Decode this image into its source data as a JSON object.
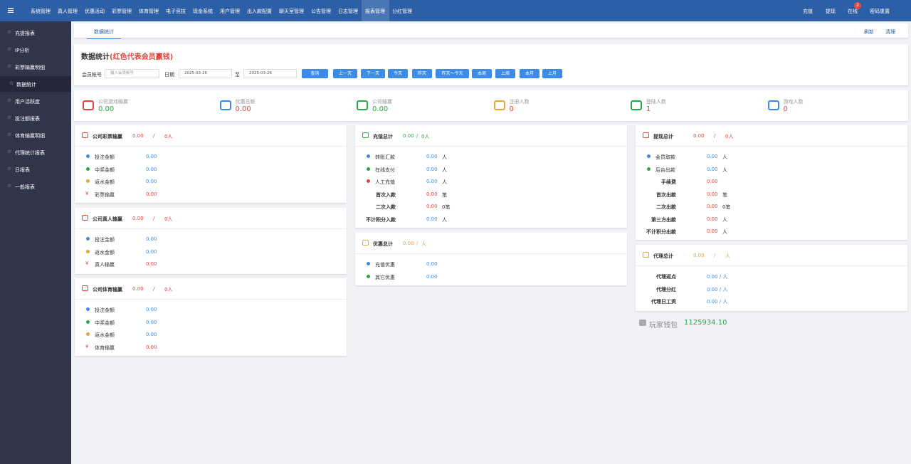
{
  "nav": {
    "items": [
      "系统管理",
      "真人管理",
      "优惠活动",
      "彩票管理",
      "体育管理",
      "电子竞技",
      "现金系统",
      "用户管理",
      "出入款配置",
      "聊天室管理",
      "公告管理",
      "日志管理",
      "报表管理",
      "分红管理"
    ],
    "right": {
      "recharge": "充值",
      "withdraw": "提现",
      "online": "在线",
      "online_badge": "2",
      "reset": "密码重置"
    }
  },
  "sidebar": [
    "充提报表",
    "IP分析",
    "彩票输赢明细",
    "数据统计",
    "用户活跃度",
    "投注额报表",
    "体育输赢明细",
    "代理统计报表",
    "日报表",
    "一般报表"
  ],
  "tab": {
    "title": "数据统计",
    "actions": [
      "刷新",
      "清理"
    ]
  },
  "header": {
    "title": "数据统计",
    "note": "(红色代表会员赢钱)"
  },
  "filter": {
    "account_label": "会员帐号",
    "account_placeholder": "输入会员帐号",
    "date_label": "日期",
    "date_from": "2025-03-26",
    "to_label": "至",
    "date_to": "2025-03-26",
    "buttons": [
      "查询",
      "上一天",
      "下一天",
      "今天",
      "昨天",
      "昨天～今天",
      "本周",
      "上周",
      "本月",
      "上月"
    ]
  },
  "stats": [
    {
      "label": "公司游戏输赢",
      "value": "0.00"
    },
    {
      "label": "优惠总额",
      "value": "0.00"
    },
    {
      "label": "公司输赢",
      "value": "0.00"
    },
    {
      "label": "注册人数",
      "value": "0"
    },
    {
      "label": "登陆人数",
      "value": "1"
    },
    {
      "label": "游戏人数",
      "value": "0"
    }
  ],
  "cards": [
    {
      "title": "公司彩票输赢",
      "total": "0.00",
      "sep": "/",
      "count": "0人",
      "rows": [
        {
          "label": "投注金额",
          "value": "0.00"
        },
        {
          "label": "中奖金额",
          "value": "0.00"
        },
        {
          "label": "返水金额",
          "value": "0.00"
        },
        {
          "label": "彩票输赢",
          "value": "0.00"
        }
      ]
    },
    {
      "title": "公司真人输赢",
      "total": "0.00",
      "sep": "/",
      "count": "0人",
      "rows": [
        {
          "label": "投注金额",
          "value": "0.00"
        },
        {
          "label": "返水金额",
          "value": "0.00"
        },
        {
          "label": "真人输赢",
          "value": "0.00"
        }
      ]
    },
    {
      "title": "公司体育输赢",
      "total": "0.00",
      "sep": "/",
      "count": "0人",
      "rows": [
        {
          "label": "投注金额",
          "value": "0.00"
        },
        {
          "label": "中奖金额",
          "value": "0.00"
        },
        {
          "label": "返水金额",
          "value": "0.00"
        },
        {
          "label": "体育输赢",
          "value": "0.00"
        }
      ]
    },
    {
      "title": "充值总计",
      "total": "0.00",
      "sep": "/",
      "count": "0人",
      "rows": [
        {
          "label": "转账汇款",
          "value": "0.00",
          "unit": "人"
        },
        {
          "label": "在线支付",
          "value": "0.00",
          "unit": "人"
        },
        {
          "label": "人工充值",
          "value": "0.00",
          "unit": "人"
        },
        {
          "label": "首次入款",
          "value": "0.00",
          "unit": "笔"
        },
        {
          "label": "二次入款",
          "value": "0.00",
          "unit": "0笔"
        },
        {
          "label": "不计积分入款",
          "value": "0.00",
          "unit": "人"
        }
      ]
    },
    {
      "title": "优惠总计",
      "total": "0.00",
      "sep": "/",
      "count": "人",
      "rows": [
        {
          "label": "充值优惠",
          "value": "0.00"
        },
        {
          "label": "其它优惠",
          "value": "0.00"
        }
      ]
    },
    {
      "title": "提现总计",
      "total": "0.00",
      "sep": "/",
      "count": "0人",
      "rows": [
        {
          "label": "会员取款",
          "value": "0.00",
          "unit": "人"
        },
        {
          "label": "后台出款",
          "value": "0.00",
          "unit": "人"
        },
        {
          "label": "手续费",
          "value": "0.00"
        },
        {
          "label": "首次出款",
          "value": "0.00",
          "unit": "笔"
        },
        {
          "label": "二次出款",
          "value": "0.00",
          "unit": "0笔"
        },
        {
          "label": "第三方出款",
          "value": "0.00",
          "unit": "人"
        },
        {
          "label": "不计积分出款",
          "value": "0.00",
          "unit": "人"
        }
      ]
    },
    {
      "title": "代理总计",
      "total": "0.00",
      "sep": "/",
      "count": "人",
      "rows": [
        {
          "label": "代理返点",
          "value": "0.00 / 人"
        },
        {
          "label": "代理分红",
          "value": "0.00 / 人"
        },
        {
          "label": "代理日工资",
          "value": "0.00 / 人"
        }
      ]
    }
  ],
  "wallet": {
    "label": "玩家钱包",
    "value": "1125934.10"
  }
}
